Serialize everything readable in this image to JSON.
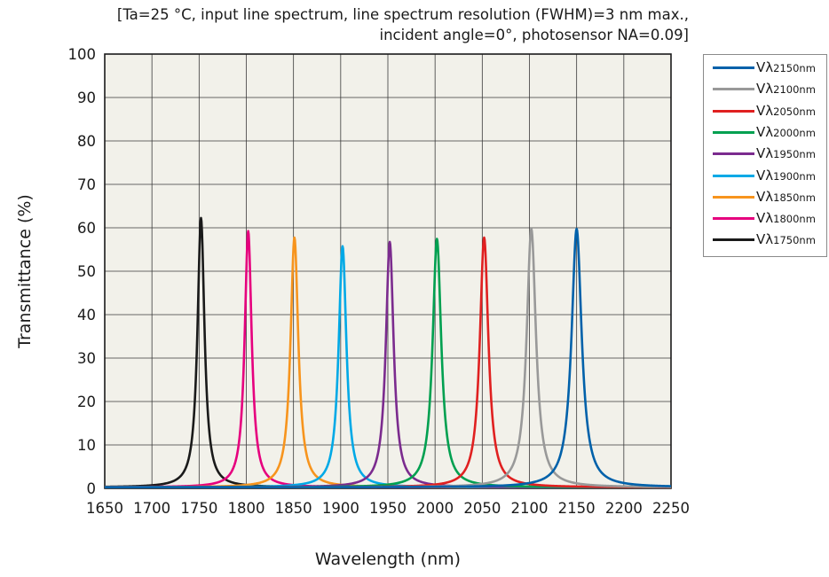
{
  "chart_data": {
    "type": "line",
    "note_lines": [
      "[Ta=25 °C, input line spectrum, line spectrum resolution (FWHM)=3 nm max.,",
      "incident angle=0°, photosensor NA=0.09]"
    ],
    "xlabel": "Wavelength (nm)",
    "ylabel": "Transmittance (%)",
    "xlim": [
      1650,
      2250
    ],
    "ylim": [
      0,
      100
    ],
    "xticks": [
      1650,
      1700,
      1750,
      1800,
      1850,
      1900,
      1950,
      2000,
      2050,
      2100,
      2150,
      2200,
      2250
    ],
    "yticks": [
      0,
      10,
      20,
      30,
      40,
      50,
      60,
      70,
      80,
      90,
      100
    ],
    "grid": true,
    "legend_position": "right",
    "series": [
      {
        "name": "Vλ2150nm",
        "label_main": "Vλ",
        "label_sub": "2150nm",
        "color": "#0061aa",
        "peak_x": 2150,
        "peak_y": 59.5,
        "fwhm": 13
      },
      {
        "name": "Vλ2100nm",
        "label_main": "Vλ",
        "label_sub": "2100nm",
        "color": "#999999",
        "peak_x": 2102,
        "peak_y": 59.5,
        "fwhm": 12
      },
      {
        "name": "Vλ2050nm",
        "label_main": "Vλ",
        "label_sub": "2050nm",
        "color": "#e02020",
        "peak_x": 2052,
        "peak_y": 57.5,
        "fwhm": 11
      },
      {
        "name": "Vλ2000nm",
        "label_main": "Vλ",
        "label_sub": "2000nm",
        "color": "#00a050",
        "peak_x": 2002,
        "peak_y": 57.2,
        "fwhm": 11
      },
      {
        "name": "Vλ1950nm",
        "label_main": "Vλ",
        "label_sub": "1950nm",
        "color": "#7b2b8e",
        "peak_x": 1952,
        "peak_y": 56.5,
        "fwhm": 10
      },
      {
        "name": "Vλ1900nm",
        "label_main": "Vλ",
        "label_sub": "1900nm",
        "color": "#00a9e6",
        "peak_x": 1902,
        "peak_y": 55.5,
        "fwhm": 10
      },
      {
        "name": "Vλ1850nm",
        "label_main": "Vλ",
        "label_sub": "1850nm",
        "color": "#f7941d",
        "peak_x": 1851,
        "peak_y": 57.5,
        "fwhm": 10
      },
      {
        "name": "Vλ1800nm",
        "label_main": "Vλ",
        "label_sub": "1800nm",
        "color": "#e6007e",
        "peak_x": 1802,
        "peak_y": 59.0,
        "fwhm": 9
      },
      {
        "name": "Vλ1750nm",
        "label_main": "Vλ",
        "label_sub": "1750nm",
        "color": "#1a1a1a",
        "peak_x": 1752,
        "peak_y": 62.0,
        "fwhm": 9
      }
    ]
  }
}
